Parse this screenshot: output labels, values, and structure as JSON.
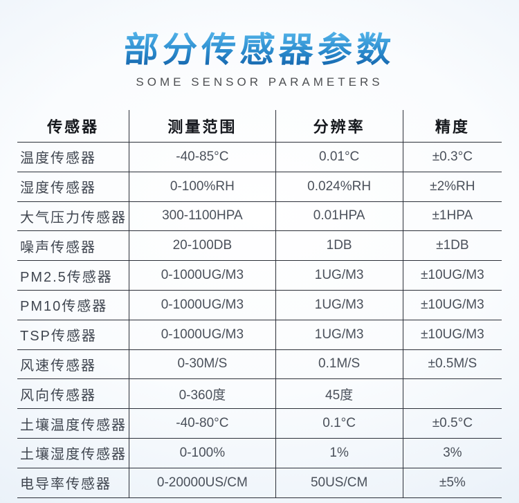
{
  "header": {
    "title": "部分传感器参数",
    "subtitle": "SOME SENSOR PARAMETERS"
  },
  "table": {
    "columns": [
      "传感器",
      "测量范围",
      "分辨率",
      "精度"
    ],
    "rows": [
      [
        "温度传感器",
        "-40-85°C",
        "0.01°C",
        "±0.3°C"
      ],
      [
        "湿度传感器",
        "0-100%RH",
        "0.024%RH",
        "±2%RH"
      ],
      [
        "大气压力传感器",
        "300-1100HPA",
        "0.01HPA",
        "±1HPA"
      ],
      [
        "噪声传感器",
        "20-100DB",
        "1DB",
        "±1DB"
      ],
      [
        "PM2.5传感器",
        "0-1000UG/M3",
        "1UG/M3",
        "±10UG/M3"
      ],
      [
        "PM10传感器",
        "0-1000UG/M3",
        "1UG/M3",
        "±10UG/M3"
      ],
      [
        "TSP传感器",
        "0-1000UG/M3",
        "1UG/M3",
        "±10UG/M3"
      ],
      [
        "风速传感器",
        "0-30M/S",
        "0.1M/S",
        "±0.5M/S"
      ],
      [
        "风向传感器",
        "0-360度",
        "45度",
        ""
      ],
      [
        "土壤温度传感器",
        "-40-80°C",
        "0.1°C",
        "±0.5°C"
      ],
      [
        "土壤湿度传感器",
        "0-100%",
        "1%",
        "3%"
      ],
      [
        "电导率传感器",
        "0-20000US/CM",
        "50US/CM",
        "±5%"
      ]
    ]
  },
  "colors": {
    "title_gradient_top": "#55b5ea",
    "title_gradient_bottom": "#1160a8",
    "subtitle_text": "#4d4f52",
    "table_line": "#2b2f38",
    "header_text": "#15181d",
    "cell_text": "#4a505a",
    "background_edge": "#e2ebf5",
    "background_center": "#ffffff"
  }
}
